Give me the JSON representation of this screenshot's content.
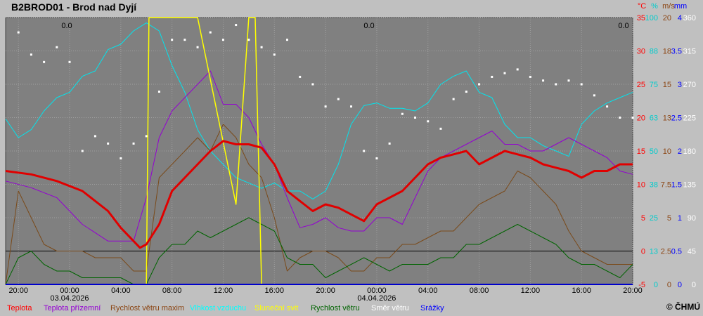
{
  "title": "B2BROD01 - Brod nad Dyjí",
  "copyright": "© ČHMÚ",
  "chart_data": {
    "type": "line",
    "x_tick_labels": [
      "20:00",
      "00:00",
      "04:00",
      "08:00",
      "12:00",
      "16:00",
      "20:00",
      "00:00",
      "04:00",
      "08:00",
      "12:00",
      "16:00",
      "20:00"
    ],
    "x_date_labels": [
      {
        "tick": 1,
        "label": "03.04.2026"
      },
      {
        "tick": 7,
        "label": "04.04.2026"
      }
    ],
    "x_range_hours": [
      0,
      49
    ],
    "units": [
      "°C",
      "%",
      "m/s",
      "mm"
    ],
    "right_axes": [
      {
        "name": "temperature",
        "unit": "°C",
        "color": "#ff0000",
        "ticks": [
          "35",
          "30",
          "25",
          "20",
          "15",
          "10",
          "5",
          "0",
          "-5"
        ]
      },
      {
        "name": "humidity",
        "unit": "%",
        "color": "#00cccc",
        "ticks": [
          "100",
          "88",
          "75",
          "63",
          "50",
          "38",
          "25",
          "13",
          "0"
        ]
      },
      {
        "name": "wind",
        "unit": "m/s",
        "color": "#8b4513",
        "ticks": [
          "20",
          "18",
          "15",
          "13",
          "10",
          "7.5",
          "5",
          "2.5",
          "0"
        ]
      },
      {
        "name": "precipitation",
        "unit": "mm",
        "color": "#0000ff",
        "ticks": [
          "4",
          "3.5",
          "3",
          "2.5",
          "2",
          "1.5",
          "1",
          "0.5",
          "0"
        ]
      },
      {
        "name": "direction",
        "unit": "",
        "color": "#ffffff",
        "ticks": [
          "360",
          "315",
          "270",
          "225",
          "180",
          "135",
          "90",
          "45",
          "0"
        ]
      }
    ],
    "precip_annotations": [
      "0.0",
      "0.0",
      "0.0"
    ],
    "legend": [
      {
        "label": "Teplota",
        "color": "#ff0000"
      },
      {
        "label": "Teplota přízemní",
        "color": "#9400d3"
      },
      {
        "label": "Rychlost větru maxim",
        "color": "#8b4513"
      },
      {
        "label": "Vlhkost vzduchu",
        "color": "#00ffff"
      },
      {
        "label": "Sluneční svit",
        "color": "#ffff00"
      },
      {
        "label": "Rychlost větru",
        "color": "#006400"
      },
      {
        "label": "Směr větru",
        "color": "#ffffff"
      },
      {
        "label": "Srážky",
        "color": "#0000ff"
      }
    ],
    "series": [
      {
        "name": "Teplota",
        "unit": "°C",
        "x": [
          0,
          2,
          4,
          6,
          8,
          9,
          10,
          10.5,
          11,
          12,
          13,
          14,
          15,
          16,
          17,
          18,
          19,
          20,
          21,
          22,
          23,
          24,
          25,
          26,
          27,
          28,
          29,
          30,
          31,
          32,
          33,
          34,
          35,
          36,
          37,
          38,
          39,
          40,
          41,
          42,
          43,
          44,
          45,
          46,
          47,
          48,
          49
        ],
        "values": [
          12,
          11.5,
          10.5,
          9,
          6,
          3.5,
          1.5,
          0.5,
          1,
          4,
          9,
          11,
          13,
          15,
          16.5,
          16,
          16,
          15.5,
          13,
          9,
          7.5,
          6,
          7,
          6.5,
          5.5,
          4.5,
          7,
          8,
          9,
          11,
          13,
          14,
          14.5,
          15,
          13,
          14,
          15,
          14.5,
          14,
          13,
          12.5,
          12,
          11,
          12,
          12,
          13,
          13
        ]
      },
      {
        "name": "Teplota přízemní",
        "unit": "°C",
        "x": [
          0,
          2,
          4,
          6,
          8,
          10,
          11,
          12,
          13,
          14,
          15,
          16,
          17,
          18,
          19,
          20,
          21,
          22,
          23,
          24,
          25,
          26,
          27,
          28,
          29,
          30,
          31,
          32,
          33,
          34,
          35,
          36,
          37,
          38,
          39,
          40,
          41,
          42,
          43,
          44,
          45,
          46,
          47,
          48,
          49
        ],
        "values": [
          10.5,
          9.5,
          8,
          4,
          1.5,
          1.5,
          8,
          17,
          21,
          23,
          25,
          27,
          22,
          22,
          20,
          16,
          13,
          8,
          3.5,
          4,
          5,
          3.5,
          3,
          3,
          5,
          5,
          4,
          8,
          12,
          14,
          15,
          16,
          17,
          18,
          16,
          16,
          15,
          15,
          16,
          17,
          16,
          15,
          14,
          12,
          11.5
        ]
      },
      {
        "name": "Rychlost větru maxim",
        "unit": "m/s",
        "x": [
          0,
          1,
          2,
          3,
          4,
          5,
          6,
          7,
          8,
          9,
          10,
          11,
          12,
          13,
          14,
          15,
          16,
          17,
          18,
          19,
          20,
          21,
          22,
          23,
          24,
          25,
          26,
          27,
          28,
          29,
          30,
          31,
          32,
          33,
          34,
          35,
          36,
          37,
          38,
          39,
          40,
          41,
          42,
          43,
          44,
          45,
          46,
          47,
          48,
          49
        ],
        "values": [
          0,
          7,
          5,
          3,
          2.5,
          2.5,
          2.5,
          2,
          2,
          2,
          1,
          1,
          8,
          9,
          10,
          11,
          10,
          12,
          11,
          9,
          8,
          5,
          1,
          2,
          2.5,
          2.5,
          2,
          1,
          1,
          2,
          2,
          3,
          3,
          3.5,
          4,
          4,
          5,
          6,
          6.5,
          7,
          8.5,
          8,
          7,
          6,
          4,
          2.5,
          2,
          1.5,
          1.5,
          1.5
        ]
      },
      {
        "name": "Vlhkost vzduchu",
        "unit": "%",
        "x": [
          0,
          1,
          2,
          3,
          4,
          5,
          6,
          7,
          8,
          9,
          10,
          11,
          12,
          13,
          14,
          15,
          16,
          17,
          18,
          19,
          20,
          21,
          22,
          23,
          24,
          25,
          26,
          27,
          28,
          29,
          30,
          31,
          32,
          33,
          34,
          35,
          36,
          37,
          38,
          39,
          40,
          41,
          42,
          43,
          44,
          45,
          46,
          47,
          48,
          49
        ],
        "values": [
          62,
          55,
          58,
          65,
          70,
          72,
          78,
          80,
          88,
          90,
          95,
          98,
          95,
          82,
          72,
          58,
          50,
          45,
          40,
          38,
          36,
          38,
          35,
          35,
          32,
          35,
          45,
          60,
          67,
          68,
          66,
          66,
          65,
          68,
          75,
          78,
          80,
          72,
          70,
          60,
          55,
          55,
          52,
          50,
          48,
          60,
          65,
          68,
          70,
          72
        ]
      },
      {
        "name": "Sluneční svit",
        "unit": "",
        "x": [
          0,
          10,
          11,
          11.2,
          15,
          18,
          19,
          19.5,
          20,
          21,
          22,
          23,
          24,
          25,
          26,
          27,
          28,
          29,
          30,
          31,
          32,
          33,
          34,
          35,
          36,
          37,
          38,
          39,
          40,
          41,
          42,
          43,
          44,
          45,
          46,
          47,
          48,
          49
        ],
        "values": [
          0,
          0,
          0,
          1,
          1,
          0.3,
          1,
          1,
          0,
          0,
          0,
          0,
          0,
          0,
          0,
          0,
          0,
          0,
          0,
          0,
          0,
          0,
          0,
          0,
          0,
          0,
          0,
          0,
          0,
          0,
          0,
          0,
          0,
          0,
          0,
          0,
          0,
          0
        ]
      },
      {
        "name": "Rychlost větru",
        "unit": "m/s",
        "x": [
          0,
          1,
          2,
          3,
          4,
          5,
          6,
          7,
          8,
          9,
          10,
          11,
          12,
          13,
          14,
          15,
          16,
          17,
          18,
          19,
          20,
          21,
          22,
          23,
          24,
          25,
          26,
          27,
          28,
          29,
          30,
          31,
          32,
          33,
          34,
          35,
          36,
          37,
          38,
          39,
          40,
          41,
          42,
          43,
          44,
          45,
          46,
          47,
          48,
          49
        ],
        "values": [
          0,
          2,
          2.5,
          1.5,
          1,
          1,
          0.5,
          0.5,
          0.5,
          0.5,
          0,
          0,
          2,
          3,
          3,
          4,
          3.5,
          4,
          4.5,
          5,
          4.5,
          4,
          2,
          1.5,
          1.5,
          0.5,
          1,
          1.5,
          2,
          1.5,
          1,
          1.5,
          1.5,
          1.5,
          2,
          2,
          3,
          3,
          3.5,
          4,
          4.5,
          4,
          3.5,
          3,
          2,
          1.5,
          1.5,
          1,
          0.5,
          1.5
        ]
      },
      {
        "name": "Směr větru",
        "unit": "°",
        "x": [
          1,
          2,
          3,
          4,
          5,
          6,
          7,
          8,
          9,
          10,
          11,
          12,
          13,
          14,
          15,
          16,
          17,
          18,
          19,
          20,
          21,
          22,
          23,
          24,
          25,
          26,
          27,
          28,
          29,
          30,
          31,
          32,
          33,
          34,
          35,
          36,
          37,
          38,
          39,
          40,
          41,
          42,
          43,
          44,
          45,
          46,
          47,
          48,
          49
        ],
        "values": [
          340,
          310,
          300,
          320,
          300,
          180,
          200,
          190,
          170,
          190,
          200,
          260,
          330,
          330,
          320,
          340,
          330,
          350,
          330,
          320,
          310,
          330,
          280,
          270,
          240,
          250,
          240,
          180,
          170,
          190,
          230,
          225,
          220,
          210,
          250,
          260,
          270,
          280,
          285,
          290,
          280,
          275,
          270,
          275,
          270,
          255,
          240,
          225,
          225
        ]
      },
      {
        "name": "Srážky",
        "unit": "mm",
        "x": [
          0,
          49
        ],
        "values": [
          0,
          0
        ]
      }
    ]
  }
}
